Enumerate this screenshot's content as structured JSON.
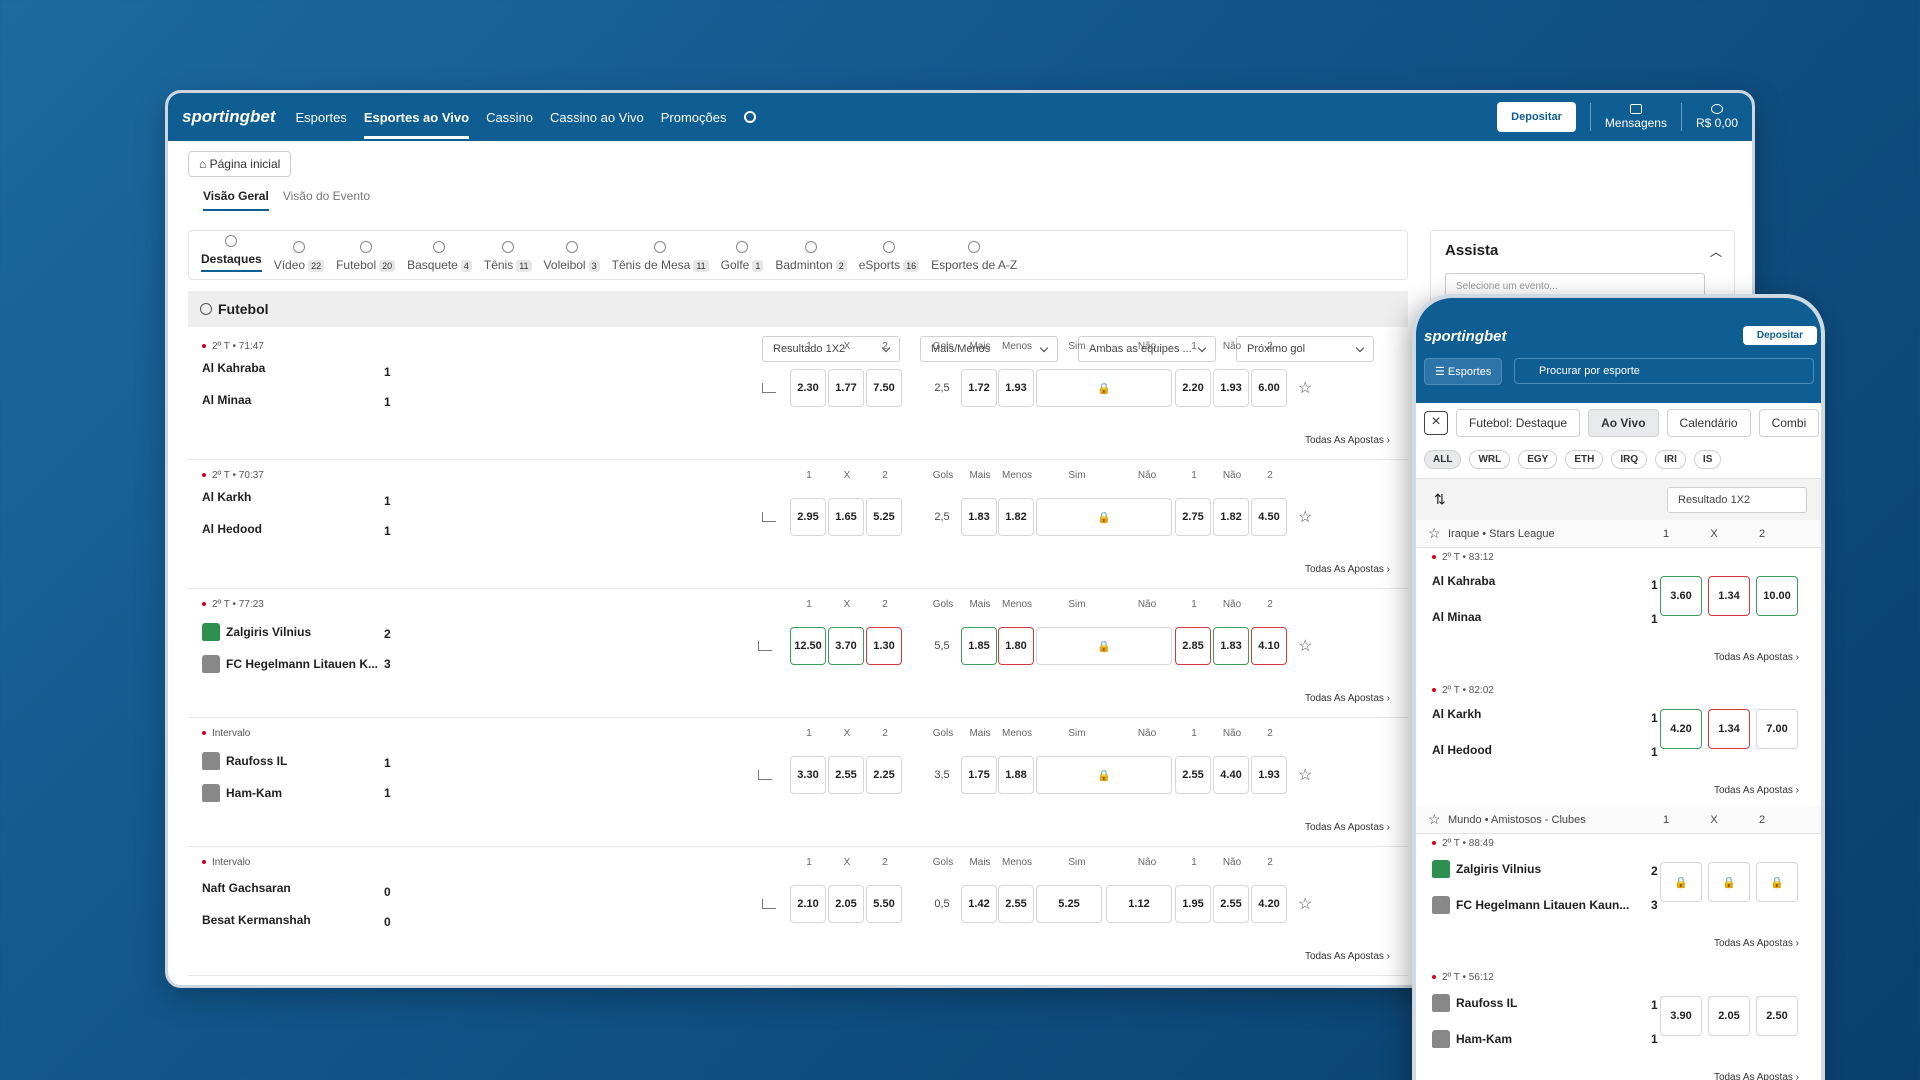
{
  "header": {
    "logo": "sportingbet",
    "nav": [
      "Esportes",
      "Esportes ao Vivo",
      "Cassino",
      "Cassino ao Vivo",
      "Promoções"
    ],
    "deposit": "Depositar",
    "messages": "Mensagens",
    "balance": "R$ 0,00"
  },
  "home": "Página inicial",
  "view_tabs": [
    "Visão Geral",
    "Visão do Evento"
  ],
  "sports": [
    {
      "label": "Destaques",
      "count": ""
    },
    {
      "label": "Vídeo",
      "count": "22"
    },
    {
      "label": "Futebol",
      "count": "20"
    },
    {
      "label": "Basquete",
      "count": "4"
    },
    {
      "label": "Tênis",
      "count": "11"
    },
    {
      "label": "Voleibol",
      "count": "3"
    },
    {
      "label": "Tênis de Mesa",
      "count": "11"
    },
    {
      "label": "Golfe",
      "count": "1"
    },
    {
      "label": "Badminton",
      "count": "2"
    },
    {
      "label": "eSports",
      "count": "16"
    },
    {
      "label": "Esportes de A-Z",
      "count": ""
    }
  ],
  "section": "Futebol",
  "markets": [
    "Resultado 1X2",
    "Mais/Menos",
    "Ambas as equipes ...",
    "Próximo gol"
  ],
  "cols": {
    "c1": "1",
    "cx": "X",
    "c2": "2",
    "gols": "Gols",
    "mais": "Mais",
    "menos": "Menos",
    "sim": "Sim",
    "nao": "Não"
  },
  "todas": "Todas As Apostas",
  "matches": [
    {
      "meta": "2º T • 71:47",
      "t1": "Al Kahraba",
      "t2": "Al Minaa",
      "s1": "1",
      "s2": "1",
      "o1": "2.30",
      "ox": "1.77",
      "o2": "7.50",
      "gols": "2,5",
      "mais": "1.72",
      "menos": "1.93",
      "sim": "",
      "nao": "",
      "n1": "2.20",
      "nn": "1.93",
      "n2": "6.00"
    },
    {
      "meta": "2º T • 70:37",
      "t1": "Al Karkh",
      "t2": "Al Hedood",
      "s1": "1",
      "s2": "1",
      "o1": "2.95",
      "ox": "1.65",
      "o2": "5.25",
      "gols": "2,5",
      "mais": "1.83",
      "menos": "1.82",
      "sim": "",
      "nao": "",
      "n1": "2.75",
      "nn": "1.82",
      "n2": "4.50"
    },
    {
      "meta": "2º T • 77:23",
      "t1": "Zalgiris Vilnius",
      "t2": "FC Hegelmann Litauen K...",
      "s1": "2",
      "s2": "3",
      "o1": "12.50",
      "ox": "3.70",
      "o2": "1.30",
      "gols": "5,5",
      "mais": "1.85",
      "menos": "1.80",
      "sim": "",
      "nao": "",
      "n1": "2.85",
      "nn": "1.83",
      "n2": "4.10"
    },
    {
      "meta": "Intervalo",
      "t1": "Raufoss IL",
      "t2": "Ham-Kam",
      "s1": "1",
      "s2": "1",
      "o1": "3.30",
      "ox": "2.55",
      "o2": "2.25",
      "gols": "3,5",
      "mais": "1.75",
      "menos": "1.88",
      "sim": "",
      "nao": "",
      "n1": "2.55",
      "nn": "4.40",
      "n2": "1.93"
    },
    {
      "meta": "Intervalo",
      "t1": "Naft Gachsaran",
      "t2": "Besat Kermanshah",
      "s1": "0",
      "s2": "0",
      "o1": "2.10",
      "ox": "2.05",
      "o2": "5.50",
      "gols": "0,5",
      "mais": "1.42",
      "menos": "2.55",
      "sim": "5.25",
      "nao": "1.12",
      "n1": "1.95",
      "nn": "2.55",
      "n2": "4.20"
    }
  ],
  "assist": {
    "title": "Assista",
    "select": "Selecione um evento..."
  },
  "mobile": {
    "deposit": "Depositar",
    "esportes": "Esportes",
    "search": "Procurar por esporte",
    "tabs": [
      "Futebol: Destaque",
      "Ao Vivo",
      "Calendário",
      "Combi"
    ],
    "filters": [
      "ALL",
      "WRL",
      "EGY",
      "ETH",
      "IRQ",
      "IRI",
      "IS"
    ],
    "sort": "Resultado 1X2",
    "league1": "Iraque • Stars League",
    "league2": "Mundo • Amistosos - Clubes",
    "matches": [
      {
        "meta": "2º T • 83:12",
        "t1": "Al Kahraba",
        "t2": "Al Minaa",
        "s1": "1",
        "s2": "1",
        "o": [
          "3.60",
          "1.34",
          "10.00"
        ]
      },
      {
        "meta": "2º T • 82:02",
        "t1": "Al Karkh",
        "t2": "Al Hedood",
        "s1": "1",
        "s2": "1",
        "o": [
          "4.20",
          "1.34",
          "7.00"
        ]
      },
      {
        "meta": "2º T • 88:49",
        "t1": "Zalgiris Vilnius",
        "t2": "FC Hegelmann Litauen Kaun...",
        "s1": "2",
        "s2": "3",
        "o": [
          "",
          "",
          ""
        ]
      },
      {
        "meta": "2º T • 56:12",
        "t1": "Raufoss IL",
        "t2": "Ham-Kam",
        "s1": "1",
        "s2": "1",
        "o": [
          "3.90",
          "2.05",
          "2.50"
        ]
      }
    ]
  }
}
